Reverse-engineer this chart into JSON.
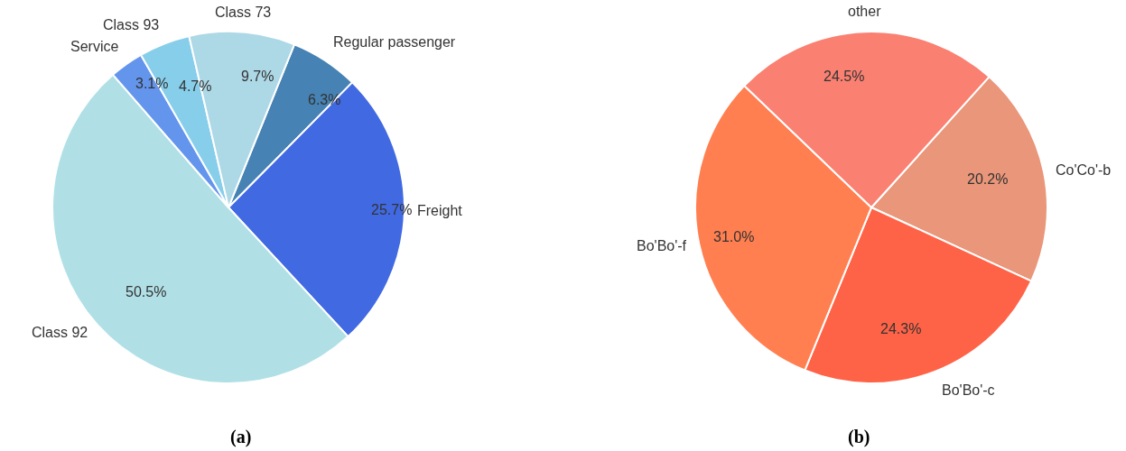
{
  "chart_data": [
    {
      "type": "pie",
      "categories": [
        "Regular passenger",
        "Freight",
        "Class 92",
        "Service",
        "Class 93",
        "Class 73"
      ],
      "values": [
        6.3,
        25.7,
        50.5,
        3.1,
        4.7,
        9.7
      ],
      "value_labels": [
        "6.3%",
        "25.7%",
        "50.5%",
        "3.1%",
        "4.7%",
        "9.7%"
      ],
      "colors": [
        "#4682b4",
        "#4169e1",
        "#b0e0e6",
        "#6495ed",
        "#87ceeb",
        "#add8e6"
      ],
      "annotations": [
        "(a)"
      ]
    },
    {
      "type": "pie",
      "categories": [
        "Co'Co'-b",
        "Bo'Bo'-c",
        "Bo'Bo'-f",
        "other"
      ],
      "values": [
        20.2,
        24.3,
        31.0,
        24.5
      ],
      "value_labels": [
        "20.2%",
        "24.3%",
        "31.0%",
        "24.5%"
      ],
      "colors": [
        "#e9967a",
        "#ff6347",
        "#ff7f50",
        "#fa8072"
      ],
      "annotations": [
        "(b)"
      ]
    }
  ]
}
